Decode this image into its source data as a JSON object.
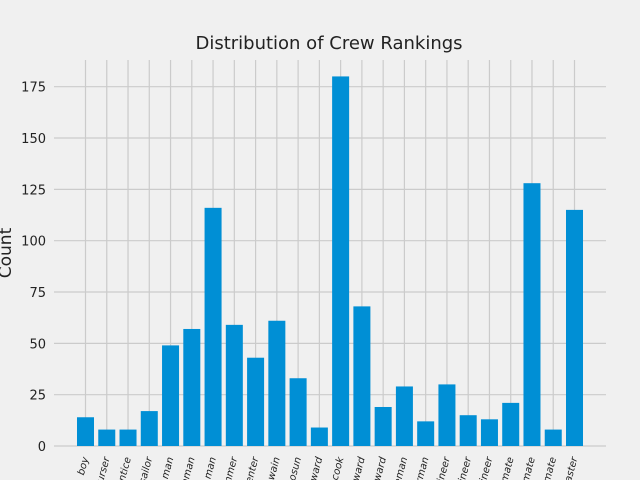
{
  "chart_data": {
    "type": "bar",
    "title": "Distribution of Crew Rankings",
    "xlabel": "",
    "ylabel": "Count",
    "ylim": [
      0,
      188
    ],
    "yticks": [
      0,
      25,
      50,
      75,
      100,
      125,
      150,
      175
    ],
    "grid": true,
    "color": "#008fd5",
    "categories": [
      "boy",
      "urser",
      "entice",
      "sailor",
      "man",
      "aman",
      "man",
      "mmer",
      "enter",
      "wain",
      "osun",
      "ward",
      "cook",
      "ward",
      "ward",
      "eman",
      "rman",
      "ineer",
      "ineer",
      "ineer",
      "mate",
      "mate",
      "mate",
      "aster"
    ],
    "values": [
      14,
      8,
      8,
      17,
      49,
      57,
      116,
      59,
      43,
      61,
      33,
      9,
      180,
      68,
      19,
      29,
      12,
      30,
      15,
      13,
      21,
      128,
      8,
      115
    ]
  }
}
